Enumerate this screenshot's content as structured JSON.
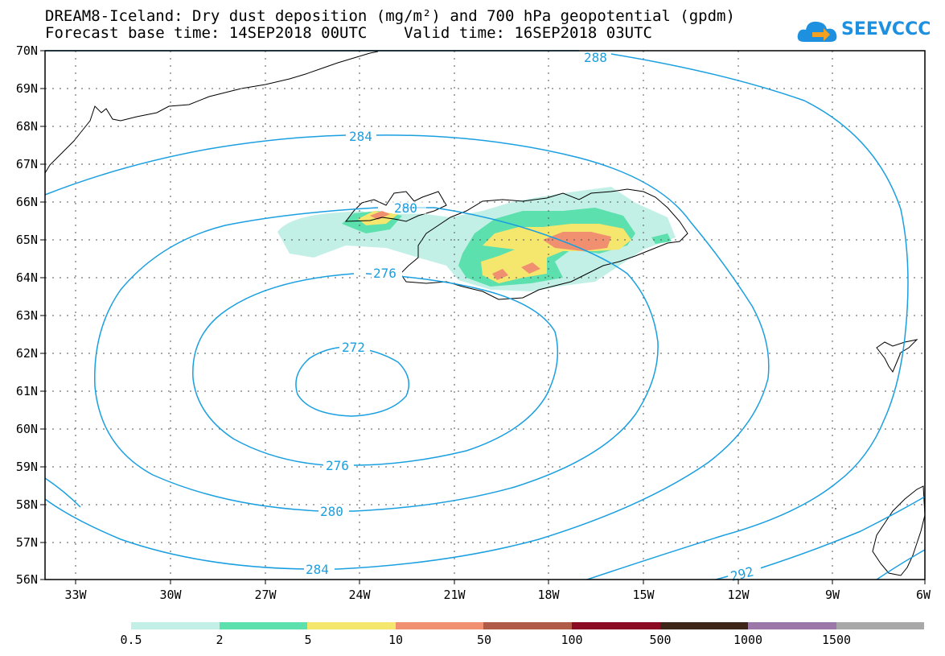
{
  "title": {
    "line1": "DREAM8-Iceland: Dry dust deposition (mg/m²) and 700 hPa geopotential (gpdm)",
    "line2": "Forecast base time: 14SEP2018 00UTC    Valid time: 16SEP2018 03UTC"
  },
  "logo": {
    "text": "SEEVCCC",
    "icon": "cloud-icon",
    "color": "#1e90e0"
  },
  "map": {
    "lat_labels": [
      "70N",
      "69N",
      "68N",
      "67N",
      "66N",
      "65N",
      "64N",
      "63N",
      "62N",
      "61N",
      "60N",
      "59N",
      "58N",
      "57N",
      "56N"
    ],
    "lon_labels": [
      "33W",
      "30W",
      "27W",
      "24W",
      "21W",
      "18W",
      "15W",
      "12W",
      "9W",
      "6W"
    ],
    "lat_range": [
      56,
      70
    ],
    "lon_range": [
      -34.5,
      -6
    ],
    "grid": "dotted",
    "contour_color": "#1a9fe0",
    "contour_labels": [
      "288",
      "284",
      "280",
      "276",
      "272",
      "276",
      "280",
      "284",
      "292"
    ]
  },
  "legend": {
    "labels": [
      "0.5",
      "2",
      "5",
      "10",
      "50",
      "100",
      "500",
      "1000",
      "1500"
    ],
    "colors": [
      "#c2f0e6",
      "#5ce0ad",
      "#f5e66e",
      "#f09070",
      "#b05a48",
      "#8b0a24",
      "#3d2518",
      "#9c78a8",
      "#a8a8a8"
    ]
  }
}
